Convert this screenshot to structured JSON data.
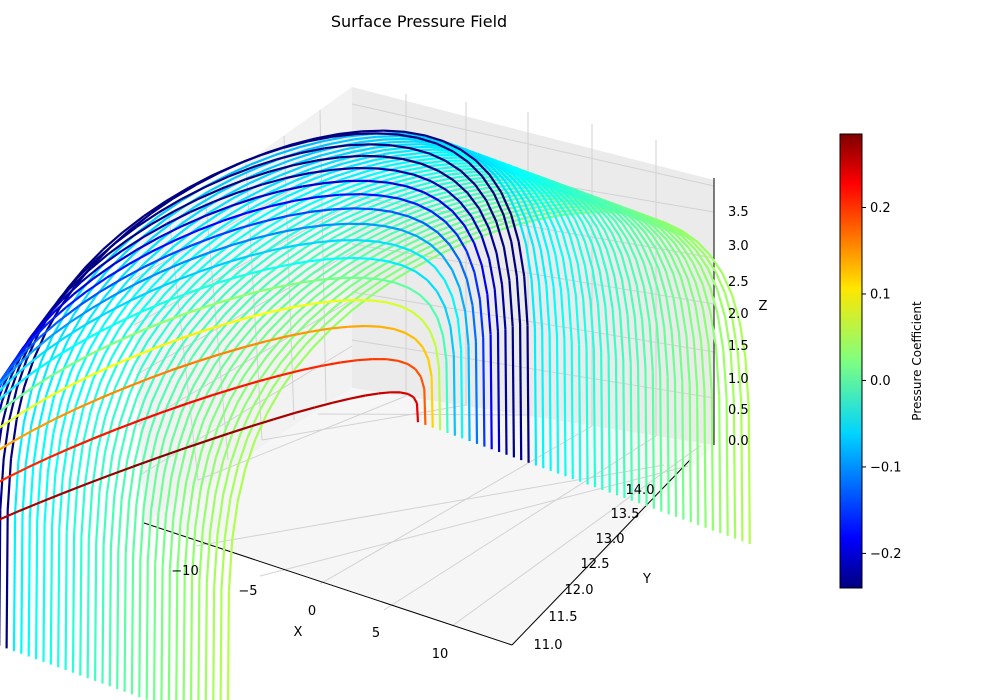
{
  "chart_data": {
    "type": "scatter",
    "projection": "3d",
    "title": "Surface Pressure Field",
    "xlabel": "X",
    "ylabel": "Y",
    "zlabel": "Z",
    "x_ticks": [
      "−10",
      "−5",
      "0",
      "5",
      "10"
    ],
    "y_ticks": [
      "11.0",
      "11.5",
      "12.0",
      "12.5",
      "13.0",
      "13.5",
      "14.0"
    ],
    "z_ticks": [
      "0.0",
      "0.5",
      "1.0",
      "1.5",
      "2.0",
      "2.5",
      "3.0",
      "3.5"
    ],
    "xlim": [
      -13.2,
      13.2
    ],
    "ylim": [
      10.9,
      14.2
    ],
    "zlim": [
      0.0,
      3.9
    ],
    "colorbar": {
      "label": "Pressure Coefficient",
      "ticks": [
        "−0.2",
        "−0.1",
        "0.0",
        "0.1",
        "0.2"
      ],
      "tick_values": [
        -0.2,
        -0.1,
        0.0,
        0.1,
        0.2
      ],
      "range": [
        -0.24,
        0.285
      ],
      "colormap": "jet"
    },
    "grid": true,
    "surface": {
      "description_of_shape": "vehicle-like body",
      "x_front": -10,
      "x_rear": 11,
      "y_range": [
        11.0,
        14.0
      ],
      "roof_height": 3.6,
      "cp_front_max": 0.28,
      "cp_roof_min": -0.24,
      "cp_rear": 0.02
    }
  }
}
